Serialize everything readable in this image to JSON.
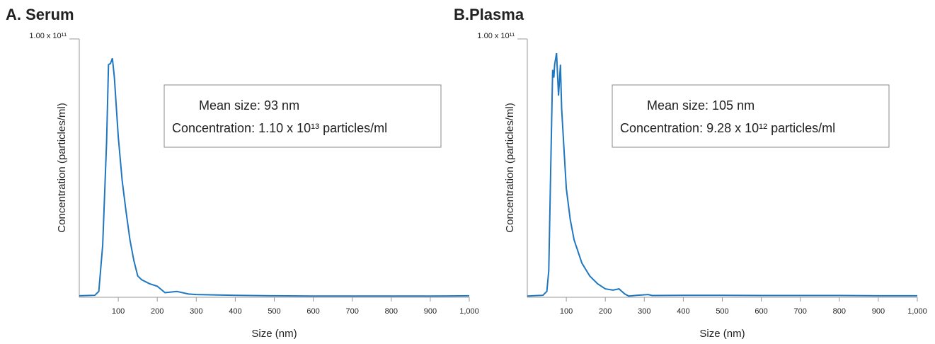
{
  "chart_data": [
    {
      "type": "line",
      "title": "A. Serum",
      "x_label": "Size (nm)",
      "y_label": "Concentration (particles/ml)",
      "annotations": [
        "Mean size: 93 nm",
        "Concentration: 1.10 x 10¹³ particles/ml"
      ],
      "xlim": [
        0,
        1000
      ],
      "ylim": [
        0,
        100000000000.0
      ],
      "xticks": [
        100,
        200,
        300,
        400,
        500,
        600,
        700,
        800,
        900,
        {
          "value": 1000,
          "label": "1,000"
        }
      ],
      "yticks": [
        {
          "value": 100000000000.0,
          "label": "1.00 x 10¹¹"
        }
      ],
      "series": [
        {
          "color": "#1f77c0",
          "x": [
            0,
            40,
            50,
            60,
            70,
            75,
            80,
            85,
            90,
            100,
            110,
            120,
            130,
            140,
            150,
            160,
            180,
            200,
            220,
            250,
            280,
            300,
            400,
            500,
            600,
            700,
            800,
            900,
            1000
          ],
          "values": [
            300000000.0,
            500000000.0,
            2000000000.0,
            20000000000.0,
            60000000000.0,
            90000000000.0,
            90500000000.0,
            92500000000.0,
            85000000000.0,
            62000000000.0,
            45000000000.0,
            33000000000.0,
            22000000000.0,
            14000000000.0,
            8000000000.0,
            6500000000.0,
            5000000000.0,
            4000000000.0,
            1500000000.0,
            2000000000.0,
            1000000000.0,
            800000000.0,
            500000000.0,
            300000000.0,
            200000000.0,
            200000000.0,
            200000000.0,
            200000000.0,
            300000000.0
          ]
        }
      ]
    },
    {
      "type": "line",
      "title": "B.Plasma",
      "x_label": "Size (nm)",
      "y_label": "Concentration (particles/ml)",
      "annotations": [
        "Mean size: 105 nm",
        "Concentration: 9.28 x 10¹² particles/ml"
      ],
      "xlim": [
        0,
        1000
      ],
      "ylim": [
        0,
        100000000000.0
      ],
      "xticks": [
        100,
        200,
        300,
        400,
        500,
        600,
        700,
        800,
        900,
        {
          "value": 1000,
          "label": "1,000"
        }
      ],
      "yticks": [
        {
          "value": 100000000000.0,
          "label": "1.00 x 10¹¹"
        }
      ],
      "series": [
        {
          "color": "#1f77c0",
          "x": [
            0,
            40,
            50,
            55,
            60,
            65,
            68,
            70,
            75,
            80,
            85,
            88,
            95,
            100,
            110,
            120,
            140,
            160,
            180,
            200,
            220,
            235,
            250,
            260,
            280,
            310,
            320,
            400,
            500,
            600,
            700,
            800,
            900,
            1000
          ],
          "values": [
            200000000.0,
            500000000.0,
            2000000000.0,
            10000000000.0,
            50000000000.0,
            88000000000.0,
            85000000000.0,
            90000000000.0,
            94500000000.0,
            78000000000.0,
            90000000000.0,
            73000000000.0,
            55000000000.0,
            42000000000.0,
            30000000000.0,
            22000000000.0,
            13000000000.0,
            8000000000.0,
            5000000000.0,
            3000000000.0,
            2500000000.0,
            3000000000.0,
            1000000000.0,
            200000000.0,
            500000000.0,
            800000000.0,
            400000000.0,
            500000000.0,
            500000000.0,
            400000000.0,
            400000000.0,
            400000000.0,
            300000000.0,
            300000000.0
          ]
        }
      ]
    }
  ]
}
